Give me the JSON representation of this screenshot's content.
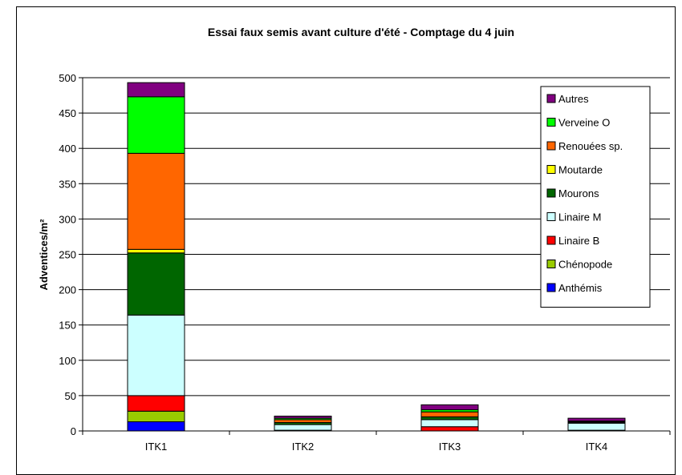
{
  "chart_data": {
    "type": "bar",
    "stacked": true,
    "title": "Essai faux semis avant culture d'été - Comptage du 4 juin",
    "ylabel": "Adventices/m²",
    "xlabel": "",
    "categories": [
      "ITK1",
      "ITK2",
      "ITK3",
      "ITK4"
    ],
    "ylim": [
      0,
      500
    ],
    "yticks": [
      0,
      50,
      100,
      150,
      200,
      250,
      300,
      350,
      400,
      450,
      500
    ],
    "grid": true,
    "legend_position": "right",
    "series": [
      {
        "name": "Anthémis",
        "color": "#0000ff",
        "values": [
          13,
          0,
          0,
          0
        ]
      },
      {
        "name": "Chénopode",
        "color": "#99cc00",
        "values": [
          15,
          0,
          0,
          0
        ]
      },
      {
        "name": "Linaire B",
        "color": "#ff0000",
        "values": [
          22,
          1,
          6,
          1
        ]
      },
      {
        "name": "Linaire M",
        "color": "#ccffff",
        "values": [
          114,
          8,
          10,
          10
        ]
      },
      {
        "name": "Mourons",
        "color": "#006600",
        "values": [
          88,
          3,
          4,
          1
        ]
      },
      {
        "name": "Moutarde",
        "color": "#ffff00",
        "values": [
          5,
          0,
          0,
          0
        ]
      },
      {
        "name": "Renouées sp.",
        "color": "#ff6600",
        "values": [
          136,
          4,
          7,
          1
        ]
      },
      {
        "name": "Verveine O",
        "color": "#00ff00",
        "values": [
          80,
          2,
          3,
          1
        ]
      },
      {
        "name": "Autres",
        "color": "#800080",
        "values": [
          20,
          3,
          7,
          4
        ]
      }
    ]
  }
}
